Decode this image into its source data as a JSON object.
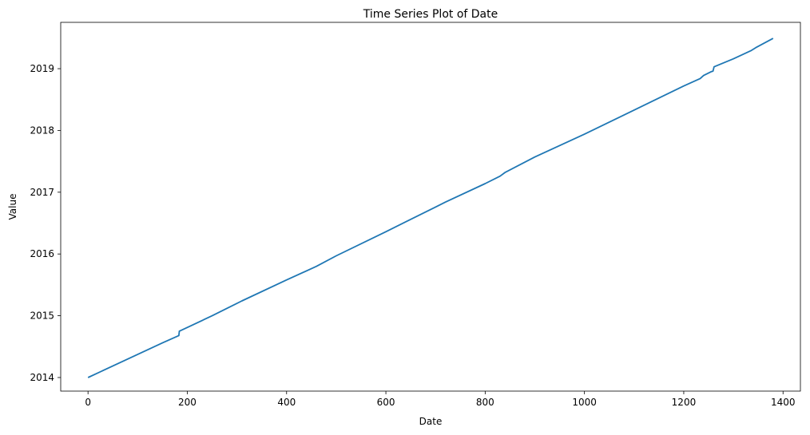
{
  "chart_data": {
    "type": "line",
    "title": "Time Series Plot of Date",
    "xlabel": "Date",
    "ylabel": "Value",
    "xlim": [
      -55,
      1435
    ],
    "ylim": [
      2013.78,
      2019.75
    ],
    "x_ticks": [
      0,
      200,
      400,
      600,
      800,
      1000,
      1200,
      1400
    ],
    "y_ticks": [
      2014,
      2015,
      2016,
      2017,
      2018,
      2019
    ],
    "grid": false,
    "legend": "none",
    "series": [
      {
        "color": "#1f77b4",
        "points": [
          [
            0,
            2014.0
          ],
          [
            80,
            2014.3
          ],
          [
            150,
            2014.56
          ],
          [
            183,
            2014.68
          ],
          [
            184,
            2014.75
          ],
          [
            245,
            2014.98
          ],
          [
            250,
            2015.0
          ],
          [
            310,
            2015.24
          ],
          [
            400,
            2015.58
          ],
          [
            460,
            2015.8
          ],
          [
            500,
            2015.97
          ],
          [
            600,
            2016.36
          ],
          [
            700,
            2016.76
          ],
          [
            720,
            2016.84
          ],
          [
            800,
            2017.14
          ],
          [
            830,
            2017.26
          ],
          [
            840,
            2017.32
          ],
          [
            900,
            2017.57
          ],
          [
            1000,
            2017.94
          ],
          [
            1100,
            2018.33
          ],
          [
            1200,
            2018.72
          ],
          [
            1233,
            2018.84
          ],
          [
            1240,
            2018.89
          ],
          [
            1255,
            2018.95
          ],
          [
            1259,
            2018.96
          ],
          [
            1261,
            2019.03
          ],
          [
            1300,
            2019.16
          ],
          [
            1335,
            2019.29
          ],
          [
            1345,
            2019.34
          ],
          [
            1380,
            2019.49
          ]
        ]
      }
    ]
  }
}
